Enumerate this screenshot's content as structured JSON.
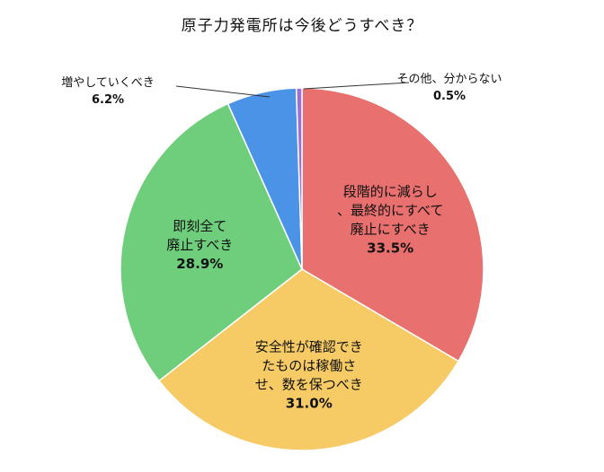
{
  "chart_data": {
    "type": "pie",
    "title": "原子力発電所は今後どうすべき？",
    "slices": [
      {
        "label_lines": [
          "段階的に減らし",
          "、最終的にすべて",
          "廃止にすべき"
        ],
        "value": 33.5,
        "value_text": "33.5%",
        "color": "#E8706E"
      },
      {
        "label_lines": [
          "安全性が確認でき",
          "たものは稼働さ",
          "せ、数を保つべき"
        ],
        "value": 31.0,
        "value_text": "31.0%",
        "color": "#F6CB66"
      },
      {
        "label_lines": [
          "即刻全て",
          "廃止すべき"
        ],
        "value": 28.9,
        "value_text": "28.9%",
        "color": "#6ECE7C"
      },
      {
        "label_lines": [
          "増やしていくべき"
        ],
        "value": 6.2,
        "value_text": "6.2%",
        "color": "#4B93E6"
      },
      {
        "label_lines": [
          "その他、分からない"
        ],
        "value": 0.5,
        "value_text": "0.5%",
        "color": "#9B6FD6"
      }
    ],
    "legend": "none",
    "start": "top",
    "direction": "clockwise"
  }
}
